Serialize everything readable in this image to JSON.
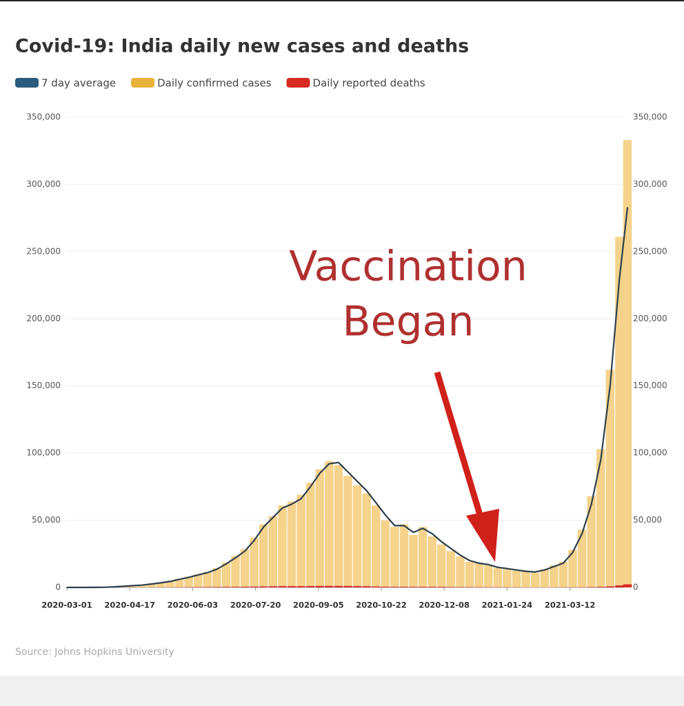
{
  "chart_data": {
    "type": "bar",
    "title": "Covid-19: India daily new cases and deaths",
    "source": "Source: Johns Hopkins University",
    "annotation_lines": [
      "Vaccination",
      "Began"
    ],
    "x": [
      "2020-03-01",
      "2020-03-08",
      "2020-03-15",
      "2020-03-22",
      "2020-03-29",
      "2020-04-05",
      "2020-04-12",
      "2020-04-19",
      "2020-04-26",
      "2020-05-03",
      "2020-05-10",
      "2020-05-17",
      "2020-05-24",
      "2020-05-31",
      "2020-06-07",
      "2020-06-14",
      "2020-06-21",
      "2020-06-28",
      "2020-07-05",
      "2020-07-12",
      "2020-07-19",
      "2020-07-26",
      "2020-08-02",
      "2020-08-09",
      "2020-08-16",
      "2020-08-23",
      "2020-08-30",
      "2020-09-06",
      "2020-09-13",
      "2020-09-20",
      "2020-09-27",
      "2020-10-04",
      "2020-10-11",
      "2020-10-18",
      "2020-10-25",
      "2020-11-01",
      "2020-11-08",
      "2020-11-15",
      "2020-11-22",
      "2020-11-29",
      "2020-12-06",
      "2020-12-13",
      "2020-12-20",
      "2020-12-27",
      "2021-01-03",
      "2021-01-10",
      "2021-01-17",
      "2021-01-24",
      "2021-01-31",
      "2021-02-07",
      "2021-02-14",
      "2021-02-21",
      "2021-02-28",
      "2021-03-07",
      "2021-03-14",
      "2021-03-21",
      "2021-03-28",
      "2021-04-04",
      "2021-04-11",
      "2021-04-18",
      "2021-04-24"
    ],
    "series": [
      {
        "name": "7 day average",
        "type": "line",
        "color": "#2c3e4c",
        "legend_color": "#2b5b7d",
        "values": [
          0,
          0,
          10,
          50,
          100,
          400,
          800,
          1300,
          1700,
          2500,
          3400,
          4400,
          6000,
          7500,
          9300,
          11000,
          13500,
          17500,
          22000,
          27000,
          35000,
          45000,
          52000,
          59000,
          62000,
          66000,
          75000,
          85000,
          92000,
          93000,
          86000,
          79000,
          72000,
          63000,
          54000,
          46000,
          46000,
          41000,
          44000,
          40000,
          34000,
          29000,
          24000,
          20000,
          18000,
          17000,
          15000,
          14000,
          13000,
          12000,
          11500,
          13000,
          15500,
          18000,
          26000,
          40000,
          62000,
          95000,
          150000,
          230000,
          283000
        ]
      },
      {
        "name": "Daily confirmed cases",
        "type": "bar",
        "color": "#f5d38c",
        "legend_color": "#e9b23a",
        "values": [
          0,
          0,
          15,
          70,
          120,
          500,
          900,
          1400,
          1900,
          2700,
          3600,
          4800,
          6500,
          8000,
          9900,
          11500,
          14500,
          18500,
          23500,
          28500,
          37000,
          47000,
          53000,
          61000,
          64000,
          69000,
          78000,
          88000,
          94000,
          91000,
          83000,
          76000,
          70000,
          61000,
          50000,
          45000,
          47000,
          39000,
          45000,
          38000,
          32000,
          27000,
          23000,
          19000,
          18500,
          16500,
          14500,
          13500,
          12500,
          11800,
          11000,
          13500,
          16500,
          19000,
          28000,
          43000,
          68000,
          103000,
          162000,
          261000,
          333000
        ]
      },
      {
        "name": "Daily reported deaths",
        "type": "bar",
        "color": "#d62a22",
        "legend_color": "#d62a22",
        "values": [
          0,
          0,
          0,
          1,
          3,
          15,
          30,
          45,
          55,
          80,
          100,
          120,
          150,
          200,
          300,
          350,
          400,
          450,
          500,
          550,
          650,
          750,
          850,
          950,
          950,
          950,
          1050,
          1100,
          1150,
          1150,
          1100,
          1000,
          900,
          700,
          550,
          500,
          500,
          450,
          500,
          500,
          450,
          350,
          300,
          270,
          230,
          200,
          170,
          150,
          130,
          100,
          100,
          100,
          110,
          120,
          150,
          200,
          300,
          500,
          800,
          1500,
          2300
        ]
      }
    ],
    "xlim": [
      "2020-03-01",
      "2021-04-25"
    ],
    "xticks": [
      "2020-03-01",
      "2020-04-17",
      "2020-06-03",
      "2020-07-20",
      "2020-09-05",
      "2020-10-22",
      "2020-12-08",
      "2021-01-24",
      "2021-03-12"
    ],
    "ylim": [
      0,
      350000
    ],
    "yticks": [
      0,
      {
        "value": 50000,
        "label": "50,000"
      },
      {
        "value": 100000,
        "label": "100,000"
      },
      {
        "value": 150000,
        "label": "150,000"
      },
      {
        "value": 200000,
        "label": "200,000"
      },
      {
        "value": 250000,
        "label": "250,000"
      },
      {
        "value": 300000,
        "label": "300,000"
      },
      {
        "value": 350000,
        "label": "350,000"
      }
    ],
    "y2lim": [
      0,
      350000
    ],
    "y2ticks": [
      0,
      {
        "value": 50000,
        "label": "50,000"
      },
      {
        "value": 100000,
        "label": "100,000"
      },
      {
        "value": 150000,
        "label": "150,000"
      },
      {
        "value": 200000,
        "label": "200,000"
      },
      {
        "value": 250000,
        "label": "250,000"
      },
      {
        "value": 300000,
        "label": "300,000"
      },
      {
        "value": 350000,
        "label": "350,000"
      }
    ],
    "grid": true
  }
}
